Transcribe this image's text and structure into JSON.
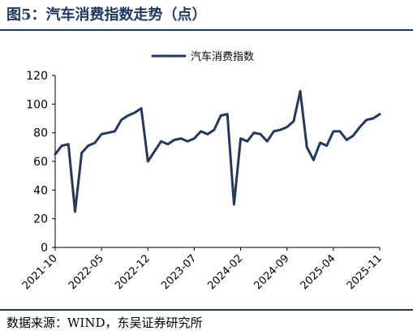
{
  "figure": {
    "title": "图5：汽车消费指数走势（点）",
    "source": "数据来源：WIND，东吴证券研究所"
  },
  "colors": {
    "series": "#1f3864",
    "axis": "#000000",
    "text": "#000000",
    "title": "#1f3864"
  },
  "chart_data": {
    "type": "line",
    "title": "",
    "xlabel": "",
    "ylabel": "",
    "ylim": [
      0,
      120
    ],
    "yticks": [
      0,
      20,
      40,
      60,
      80,
      100,
      120
    ],
    "grid": false,
    "legend_position": "top-center",
    "xticks": [
      "2021-10",
      "2022-05",
      "2022-12",
      "2023-07",
      "2024-02",
      "2024-09",
      "2025-04",
      "2025-11"
    ],
    "series": [
      {
        "name": "汽车消费指数",
        "x": [
          "2021-10",
          "2021-11",
          "2021-12",
          "2022-01",
          "2022-02",
          "2022-03",
          "2022-04",
          "2022-05",
          "2022-06",
          "2022-07",
          "2022-08",
          "2022-09",
          "2022-10",
          "2022-11",
          "2022-12",
          "2023-01",
          "2023-02",
          "2023-03",
          "2023-04",
          "2023-05",
          "2023-06",
          "2023-07",
          "2023-08",
          "2023-09",
          "2023-10",
          "2023-11",
          "2023-12",
          "2024-01",
          "2024-02",
          "2024-03",
          "2024-04",
          "2024-05",
          "2024-06",
          "2024-07",
          "2024-08",
          "2024-09",
          "2024-10",
          "2024-11",
          "2024-12",
          "2025-01",
          "2025-02",
          "2025-03",
          "2025-04",
          "2025-05",
          "2025-06",
          "2025-07",
          "2025-08",
          "2025-09",
          "2025-10",
          "2025-11"
        ],
        "values": [
          65,
          71,
          72,
          25,
          66,
          71,
          73,
          79,
          80,
          81,
          89,
          92,
          94,
          97,
          60,
          67,
          74,
          72,
          75,
          76,
          74,
          76,
          81,
          79,
          82,
          92,
          93,
          30,
          76,
          74,
          80,
          79,
          74,
          81,
          82,
          84,
          88,
          109,
          70,
          61,
          73,
          71,
          81,
          81,
          75,
          78,
          84,
          89,
          90,
          93
        ]
      }
    ]
  }
}
